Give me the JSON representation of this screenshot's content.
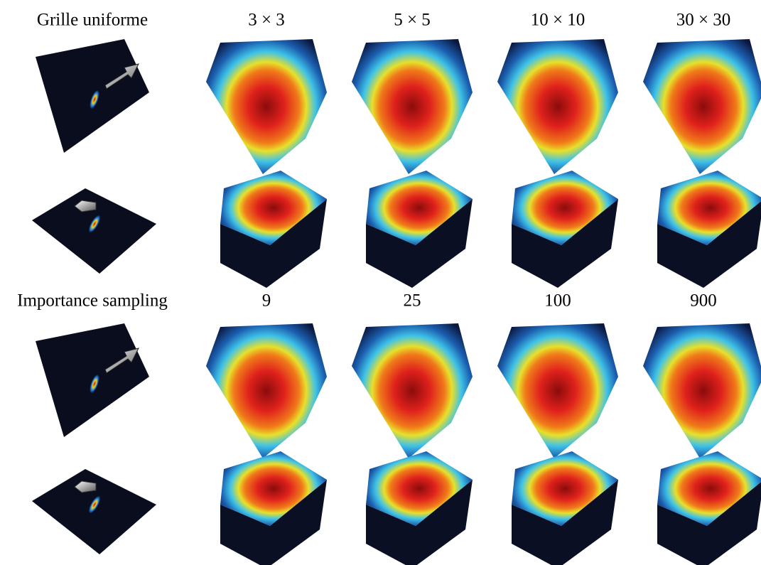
{
  "header_top": {
    "row_label": "Grille uniforme",
    "columns": [
      "3 × 3",
      "5 × 5",
      "10 × 10",
      "30 × 30"
    ]
  },
  "header_bottom": {
    "row_label": "Importance sampling",
    "columns": [
      "9",
      "25",
      "100",
      "900"
    ]
  }
}
